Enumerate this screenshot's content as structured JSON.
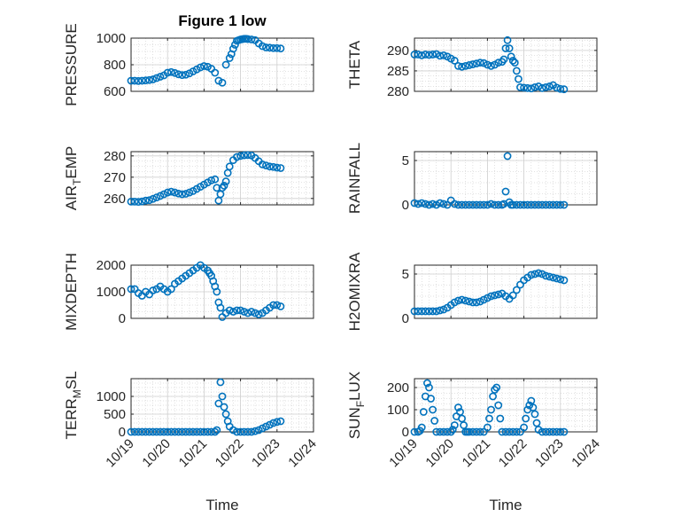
{
  "figure": {
    "title": "Figure 1 low",
    "marker_color": "#0072BD"
  },
  "x_axis": {
    "label": "Time",
    "lim": [
      "10/19",
      "10/24"
    ],
    "ticks": [
      "10/19",
      "10/20",
      "10/21",
      "10/22",
      "10/23",
      "10/24"
    ]
  },
  "chart_data": [
    {
      "type": "scatter",
      "ylabel": "PRESSURE",
      "ylim": [
        600,
        1000
      ],
      "yticks": [
        600,
        800,
        1000
      ],
      "xlim": [
        0,
        5
      ],
      "x": [
        0,
        0.1,
        0.2,
        0.3,
        0.4,
        0.5,
        0.6,
        0.7,
        0.8,
        0.9,
        1.0,
        1.1,
        1.2,
        1.3,
        1.4,
        1.5,
        1.6,
        1.7,
        1.8,
        1.9,
        2.0,
        2.1,
        2.2,
        2.3,
        2.4,
        2.5,
        2.6,
        2.7,
        2.75,
        2.8,
        2.85,
        2.9,
        2.95,
        3.0,
        3.05,
        3.1,
        3.15,
        3.2,
        3.3,
        3.4,
        3.5,
        3.6,
        3.7,
        3.8,
        3.9,
        4.0,
        4.1
      ],
      "y": [
        680,
        680,
        678,
        680,
        682,
        685,
        690,
        700,
        710,
        720,
        740,
        745,
        738,
        728,
        722,
        725,
        735,
        750,
        765,
        780,
        790,
        785,
        770,
        740,
        680,
        665,
        800,
        850,
        880,
        920,
        950,
        980,
        985,
        990,
        992,
        995,
        995,
        993,
        990,
        985,
        960,
        940,
        930,
        928,
        925,
        925,
        922
      ]
    },
    {
      "type": "scatter",
      "ylabel": "THETA",
      "ylim": [
        280,
        293
      ],
      "yticks": [
        280,
        285,
        290
      ],
      "xlim": [
        0,
        5
      ],
      "x": [
        0,
        0.1,
        0.2,
        0.3,
        0.4,
        0.5,
        0.6,
        0.7,
        0.8,
        0.9,
        1.0,
        1.1,
        1.2,
        1.3,
        1.4,
        1.5,
        1.6,
        1.7,
        1.8,
        1.9,
        2.0,
        2.1,
        2.2,
        2.3,
        2.4,
        2.45,
        2.5,
        2.55,
        2.6,
        2.65,
        2.7,
        2.75,
        2.8,
        2.85,
        2.9,
        3.0,
        3.1,
        3.2,
        3.3,
        3.4,
        3.5,
        3.6,
        3.7,
        3.8,
        3.9,
        4.0,
        4.1
      ],
      "y": [
        289,
        289,
        288.8,
        289,
        288.9,
        289,
        289.1,
        288.7,
        288.8,
        288.5,
        288,
        287.5,
        286.2,
        286,
        286.2,
        286.4,
        286.6,
        286.8,
        287,
        286.9,
        286.5,
        286.2,
        286.5,
        287,
        287.2,
        287.8,
        290.5,
        292.5,
        290.5,
        288.5,
        287.5,
        287,
        285,
        283,
        281,
        280.9,
        280.8,
        280.7,
        281,
        281.2,
        280.8,
        281,
        281.2,
        281.5,
        280.9,
        280.6,
        280.5
      ]
    },
    {
      "type": "scatter",
      "ylabel": "AIR_TEMP",
      "ylim": [
        257,
        282
      ],
      "yticks": [
        260,
        270,
        280
      ],
      "xlim": [
        0,
        5
      ],
      "x": [
        0,
        0.1,
        0.2,
        0.3,
        0.4,
        0.5,
        0.6,
        0.7,
        0.8,
        0.9,
        1.0,
        1.1,
        1.2,
        1.3,
        1.4,
        1.5,
        1.6,
        1.7,
        1.8,
        1.9,
        2.0,
        2.1,
        2.2,
        2.3,
        2.35,
        2.4,
        2.45,
        2.5,
        2.55,
        2.6,
        2.65,
        2.7,
        2.8,
        2.9,
        3.0,
        3.1,
        3.2,
        3.3,
        3.4,
        3.5,
        3.6,
        3.7,
        3.8,
        3.9,
        4.0,
        4.1
      ],
      "y": [
        258.5,
        258.5,
        258.4,
        258.6,
        259,
        259.2,
        259.8,
        260.5,
        261.2,
        262,
        262.8,
        263.2,
        262.8,
        262.3,
        262,
        262.2,
        262.8,
        263.5,
        264.5,
        265.5,
        266.5,
        267.5,
        268.5,
        269,
        265,
        259,
        262,
        265,
        266,
        268,
        272,
        275,
        278,
        279.5,
        280,
        280.3,
        280.4,
        280.2,
        279,
        277.5,
        276,
        275.5,
        275,
        274.8,
        274.5,
        274.3
      ]
    },
    {
      "type": "scatter",
      "ylabel": "RAINFALL",
      "ylim": [
        0,
        6
      ],
      "yticks": [
        0,
        5
      ],
      "xlim": [
        0,
        5
      ],
      "x": [
        0,
        0.1,
        0.2,
        0.3,
        0.4,
        0.5,
        0.6,
        0.7,
        0.8,
        0.9,
        1.0,
        1.1,
        1.2,
        1.3,
        1.4,
        1.5,
        1.6,
        1.7,
        1.8,
        1.9,
        2.0,
        2.1,
        2.2,
        2.3,
        2.4,
        2.45,
        2.5,
        2.55,
        2.6,
        2.65,
        2.7,
        2.8,
        2.9,
        3.0,
        3.1,
        3.2,
        3.3,
        3.4,
        3.5,
        3.6,
        3.7,
        3.8,
        3.9,
        4.0,
        4.1
      ],
      "y": [
        0.2,
        0.1,
        0.2,
        0.1,
        0,
        0.1,
        0,
        0.2,
        0.1,
        0,
        0.5,
        0.1,
        0,
        0,
        0,
        0,
        0,
        0,
        0,
        0,
        0,
        0.1,
        0,
        0,
        0,
        0.1,
        1.5,
        5.5,
        0.3,
        0,
        0,
        0,
        0,
        0,
        0,
        0,
        0,
        0,
        0,
        0,
        0,
        0,
        0,
        0,
        0
      ]
    },
    {
      "type": "scatter",
      "ylabel": "MIXDEPTH",
      "ylim": [
        0,
        2000
      ],
      "yticks": [
        0,
        1000,
        2000
      ],
      "xlim": [
        0,
        5
      ],
      "x": [
        0,
        0.1,
        0.2,
        0.3,
        0.4,
        0.5,
        0.6,
        0.7,
        0.8,
        0.9,
        1.0,
        1.1,
        1.2,
        1.3,
        1.4,
        1.5,
        1.6,
        1.7,
        1.8,
        1.9,
        2.0,
        2.1,
        2.15,
        2.2,
        2.25,
        2.3,
        2.35,
        2.4,
        2.45,
        2.5,
        2.6,
        2.7,
        2.8,
        2.9,
        3.0,
        3.1,
        3.2,
        3.3,
        3.4,
        3.5,
        3.6,
        3.7,
        3.8,
        3.9,
        4.0,
        4.1
      ],
      "y": [
        1100,
        1100,
        950,
        850,
        1000,
        900,
        1050,
        1100,
        1200,
        1100,
        1000,
        1100,
        1300,
        1400,
        1500,
        1600,
        1700,
        1800,
        1900,
        2000,
        1900,
        1800,
        1700,
        1600,
        1400,
        1200,
        1000,
        600,
        400,
        50,
        200,
        300,
        250,
        300,
        300,
        250,
        200,
        250,
        200,
        150,
        200,
        300,
        400,
        500,
        500,
        450
      ]
    },
    {
      "type": "scatter",
      "ylabel": "H2OMIXRA",
      "ylim": [
        0,
        6
      ],
      "yticks": [
        0,
        5
      ],
      "xlim": [
        0,
        5
      ],
      "x": [
        0,
        0.1,
        0.2,
        0.3,
        0.4,
        0.5,
        0.6,
        0.7,
        0.8,
        0.9,
        1.0,
        1.1,
        1.2,
        1.3,
        1.4,
        1.5,
        1.6,
        1.7,
        1.8,
        1.9,
        2.0,
        2.1,
        2.2,
        2.3,
        2.4,
        2.5,
        2.6,
        2.7,
        2.8,
        2.9,
        3.0,
        3.1,
        3.2,
        3.3,
        3.4,
        3.5,
        3.6,
        3.7,
        3.8,
        3.9,
        4.0,
        4.1
      ],
      "y": [
        0.8,
        0.8,
        0.8,
        0.8,
        0.8,
        0.8,
        0.8,
        0.9,
        1.0,
        1.2,
        1.5,
        1.8,
        2.0,
        2.1,
        2.0,
        1.9,
        1.8,
        1.8,
        1.9,
        2.1,
        2.3,
        2.5,
        2.6,
        2.7,
        2.8,
        2.5,
        2.2,
        2.6,
        3.2,
        3.8,
        4.3,
        4.6,
        4.9,
        5.0,
        5.1,
        5.0,
        4.8,
        4.7,
        4.6,
        4.5,
        4.4,
        4.3
      ]
    },
    {
      "type": "scatter",
      "ylabel": "TERR_MSL",
      "ylim": [
        0,
        1500
      ],
      "yticks": [
        0,
        500,
        1000
      ],
      "xlim": [
        0,
        5
      ],
      "x": [
        0,
        0.1,
        0.2,
        0.3,
        0.4,
        0.5,
        0.6,
        0.7,
        0.8,
        0.9,
        1.0,
        1.1,
        1.2,
        1.3,
        1.4,
        1.5,
        1.6,
        1.7,
        1.8,
        1.9,
        2.0,
        2.1,
        2.2,
        2.3,
        2.35,
        2.4,
        2.45,
        2.5,
        2.55,
        2.6,
        2.65,
        2.7,
        2.8,
        2.9,
        3.0,
        3.1,
        3.2,
        3.3,
        3.4,
        3.5,
        3.6,
        3.7,
        3.8,
        3.9,
        4.0,
        4.1
      ],
      "y": [
        0,
        0,
        0,
        0,
        0,
        0,
        0,
        0,
        0,
        0,
        0,
        0,
        0,
        0,
        0,
        0,
        0,
        0,
        0,
        0,
        0,
        0,
        0,
        0,
        50,
        800,
        1400,
        1000,
        700,
        500,
        300,
        150,
        50,
        0,
        0,
        0,
        0,
        0,
        20,
        50,
        100,
        150,
        200,
        250,
        280,
        300
      ]
    },
    {
      "type": "scatter",
      "ylabel": "SUN_FLUX",
      "ylim": [
        0,
        240
      ],
      "yticks": [
        0,
        100,
        200
      ],
      "xlim": [
        0,
        5
      ],
      "x": [
        0,
        0.1,
        0.15,
        0.2,
        0.25,
        0.3,
        0.35,
        0.4,
        0.45,
        0.5,
        0.55,
        0.6,
        0.7,
        0.8,
        0.9,
        1.0,
        1.05,
        1.1,
        1.15,
        1.2,
        1.25,
        1.3,
        1.35,
        1.4,
        1.45,
        1.5,
        1.6,
        1.7,
        1.8,
        1.9,
        2.0,
        2.05,
        2.1,
        2.15,
        2.2,
        2.25,
        2.3,
        2.35,
        2.4,
        2.5,
        2.6,
        2.7,
        2.8,
        2.9,
        3.0,
        3.05,
        3.1,
        3.15,
        3.2,
        3.25,
        3.3,
        3.35,
        3.4,
        3.5,
        3.6,
        3.7,
        3.8,
        3.9,
        4.0,
        4.1
      ],
      "y": [
        0,
        0,
        5,
        20,
        90,
        160,
        220,
        200,
        150,
        100,
        50,
        0,
        0,
        0,
        0,
        0,
        10,
        30,
        70,
        110,
        90,
        60,
        30,
        0,
        0,
        0,
        0,
        0,
        0,
        0,
        20,
        60,
        100,
        160,
        190,
        200,
        120,
        60,
        0,
        0,
        0,
        0,
        0,
        0,
        20,
        60,
        100,
        120,
        140,
        110,
        80,
        40,
        10,
        0,
        0,
        0,
        0,
        0,
        0,
        0
      ]
    }
  ]
}
